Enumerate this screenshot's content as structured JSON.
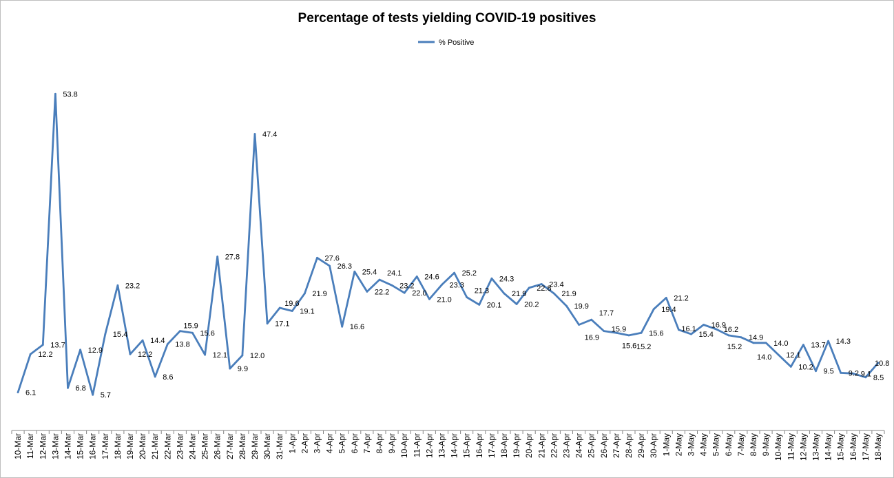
{
  "chart_data": {
    "type": "line",
    "title": "Percentage of tests yielding COVID-19 positives",
    "xlabel": "",
    "ylabel": "",
    "ylim": [
      0,
      60
    ],
    "grid": false,
    "legend": "top",
    "axis_color": "#868686",
    "border_color": "#bfbfbf",
    "categories": [
      "10-Mar",
      "11-Mar",
      "12-Mar",
      "13-Mar",
      "14-Mar",
      "15-Mar",
      "16-Mar",
      "17-Mar",
      "18-Mar",
      "19-Mar",
      "20-Mar",
      "21-Mar",
      "22-Mar",
      "23-Mar",
      "24-Mar",
      "25-Mar",
      "26-Mar",
      "27-Mar",
      "28-Mar",
      "29-Mar",
      "30-Mar",
      "31-Mar",
      "1-Apr",
      "2-Apr",
      "3-Apr",
      "4-Apr",
      "5-Apr",
      "6-Apr",
      "7-Apr",
      "8-Apr",
      "9-Apr",
      "10-Apr",
      "11-Apr",
      "12-Apr",
      "13-Apr",
      "14-Apr",
      "15-Apr",
      "16-Apr",
      "17-Apr",
      "18-Apr",
      "19-Apr",
      "20-Apr",
      "21-Apr",
      "22-Apr",
      "23-Apr",
      "24-Apr",
      "25-Apr",
      "26-Apr",
      "27-Apr",
      "28-Apr",
      "29-Apr",
      "30-Apr",
      "1-May",
      "2-May",
      "3-May",
      "4-May",
      "5-May",
      "6-May",
      "7-May",
      "8-May",
      "9-May",
      "10-May",
      "11-May",
      "12-May",
      "13-May",
      "14-May",
      "15-May",
      "16-May",
      "17-May",
      "18-May"
    ],
    "series": [
      {
        "name": "% Positive",
        "color": "#4A7EBB",
        "values": [
          6.1,
          12.2,
          13.7,
          53.8,
          6.8,
          12.9,
          5.7,
          15.4,
          23.2,
          12.2,
          14.4,
          8.6,
          13.8,
          15.9,
          15.6,
          12.1,
          27.8,
          9.9,
          12.0,
          47.4,
          17.1,
          19.6,
          19.1,
          21.9,
          27.6,
          26.3,
          16.6,
          25.4,
          22.2,
          24.1,
          23.2,
          22.0,
          24.6,
          21.0,
          23.3,
          25.2,
          21.3,
          20.1,
          24.3,
          21.9,
          20.2,
          22.8,
          23.4,
          21.9,
          19.9,
          16.9,
          17.7,
          15.9,
          15.6,
          15.2,
          15.6,
          19.4,
          21.2,
          16.1,
          15.4,
          16.9,
          16.2,
          15.2,
          14.9,
          14.0,
          14.0,
          12.1,
          10.2,
          13.7,
          9.5,
          14.3,
          9.2,
          9.1,
          8.5,
          10.8
        ],
        "data_labels": [
          "6.1",
          "12.2",
          "13.7",
          "53.8",
          "6.8",
          "12.9",
          "5.7",
          "15.4",
          "23.2",
          "12.2",
          "14.4",
          "8.6",
          "13.8",
          "15.9",
          "15.6",
          "12.1",
          "27.8",
          "9.9",
          "12.0",
          "47.4",
          "17.1",
          "19.6",
          "19.1",
          "21.9",
          "27.6",
          "26.3",
          "16.6",
          "25.4",
          "22.2",
          "24.1",
          "23.2",
          "22.0",
          "24.6",
          "21.0",
          "23.3",
          "25.2",
          "21.3",
          "20.1",
          "24.3",
          "21.9",
          "20.2",
          "22.8",
          "23.4",
          "21.9",
          "19.9",
          "16.9",
          "17.7",
          "15.9",
          "15.6",
          "15.2",
          "15.6",
          "19.4",
          "21.2",
          "16.1",
          "15.4",
          "16.9",
          "16.2",
          "15.2",
          "14.9",
          "14.0",
          "14.0",
          "12.1",
          "10.2",
          "13.7",
          "9.5",
          "14.3",
          "9.2",
          "9.1",
          "8.5",
          "10.8"
        ]
      }
    ]
  }
}
